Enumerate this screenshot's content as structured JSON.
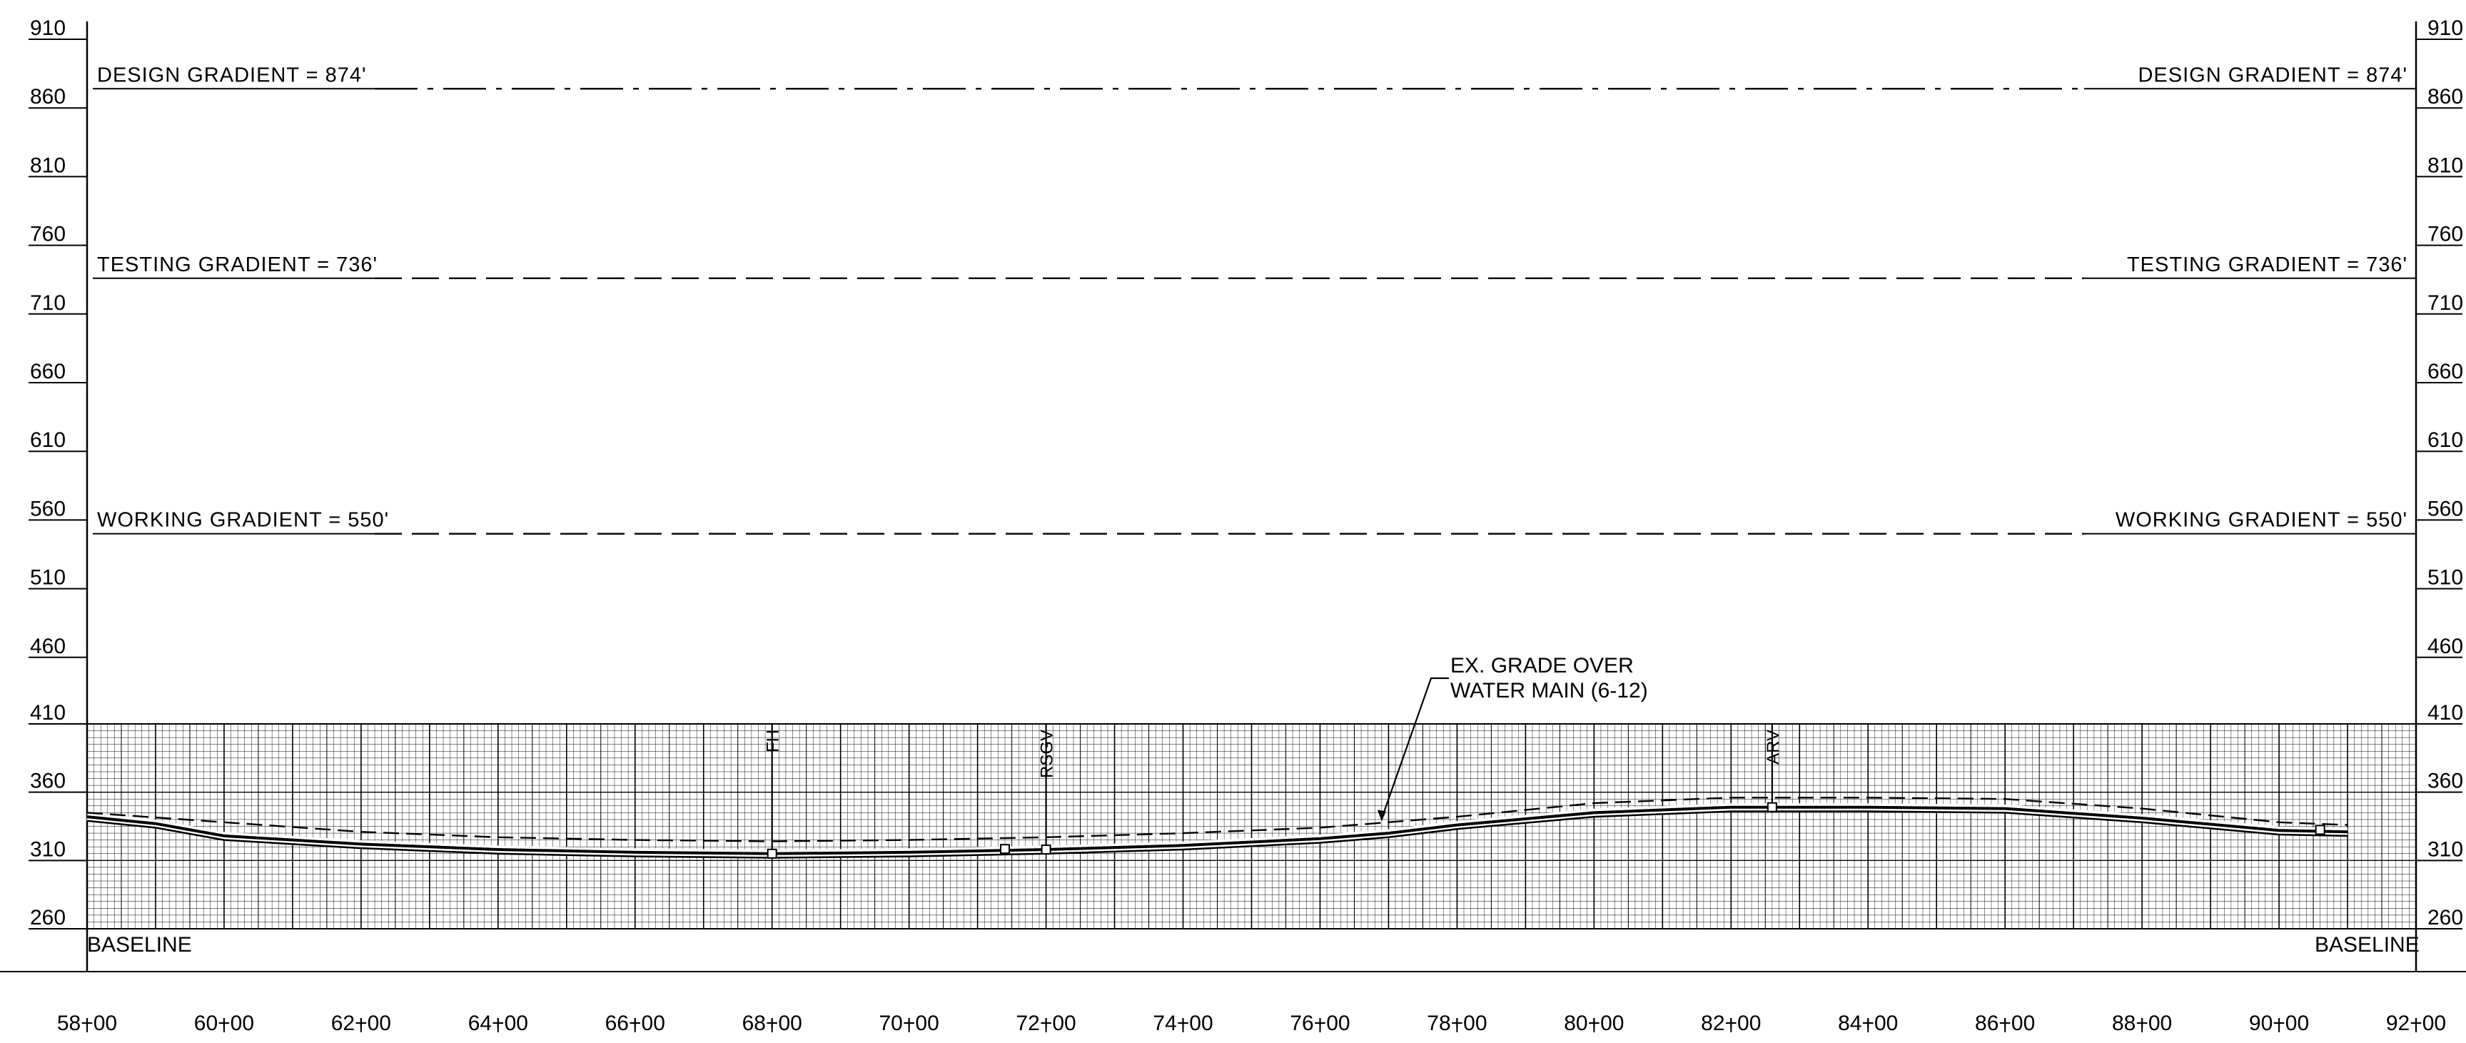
{
  "profile": {
    "elevation_labels": [
      "910",
      "860",
      "810",
      "760",
      "710",
      "660",
      "610",
      "560",
      "510",
      "460",
      "410",
      "360",
      "310",
      "260"
    ],
    "elevation_values": [
      910,
      860,
      810,
      760,
      710,
      660,
      610,
      560,
      510,
      460,
      410,
      360,
      310,
      260
    ],
    "station_labels": [
      "58+00",
      "60+00",
      "62+00",
      "64+00",
      "66+00",
      "68+00",
      "70+00",
      "72+00",
      "74+00",
      "76+00",
      "78+00",
      "80+00",
      "82+00",
      "84+00",
      "86+00",
      "88+00",
      "90+00",
      "92+00"
    ],
    "station_values": [
      5800,
      6000,
      6200,
      6400,
      6600,
      6800,
      7000,
      7200,
      7400,
      7600,
      7800,
      8000,
      8200,
      8400,
      8600,
      8800,
      9000,
      9200
    ],
    "gradients": [
      {
        "label": "DESIGN GRADIENT = 874'",
        "elevation": 874,
        "style": "dash-dot"
      },
      {
        "label": "TESTING GRADIENT = 736'",
        "elevation": 736,
        "style": "dashed"
      },
      {
        "label": "WORKING GRADIENT = 550'",
        "elevation": 550,
        "style": "dashed"
      }
    ],
    "baseline_label": "BASELINE",
    "callout": {
      "line1": "EX. GRADE OVER",
      "line2": "WATER MAIN (6-12)",
      "station": 7690
    },
    "fittings": [
      {
        "label": "FH",
        "station": 6800
      },
      {
        "label": "RSGV",
        "station": 7200
      },
      {
        "label": "ARV",
        "station": 8260
      }
    ],
    "pipe_profile": [
      [
        5800,
        342
      ],
      [
        5900,
        337
      ],
      [
        6000,
        328
      ],
      [
        6200,
        322
      ],
      [
        6400,
        318
      ],
      [
        6600,
        316
      ],
      [
        6800,
        315
      ],
      [
        7000,
        316
      ],
      [
        7200,
        318
      ],
      [
        7400,
        321
      ],
      [
        7600,
        326
      ],
      [
        7700,
        330
      ],
      [
        7800,
        336
      ],
      [
        8000,
        345
      ],
      [
        8200,
        349
      ],
      [
        8400,
        349
      ],
      [
        8600,
        348
      ],
      [
        8800,
        341
      ],
      [
        9000,
        332
      ],
      [
        9100,
        331
      ]
    ],
    "ground_profile": [
      [
        5800,
        345
      ],
      [
        6000,
        338
      ],
      [
        6200,
        331
      ],
      [
        6400,
        327
      ],
      [
        6600,
        325
      ],
      [
        6800,
        324
      ],
      [
        7000,
        325
      ],
      [
        7200,
        327
      ],
      [
        7400,
        330
      ],
      [
        7600,
        334
      ],
      [
        7800,
        342
      ],
      [
        8000,
        352
      ],
      [
        8200,
        356
      ],
      [
        8400,
        356
      ],
      [
        8600,
        355
      ],
      [
        8800,
        348
      ],
      [
        9000,
        338
      ],
      [
        9100,
        336
      ]
    ],
    "colors": {
      "line": "#000000",
      "grid": "#2a2a2a",
      "background": "#ffffff"
    }
  }
}
